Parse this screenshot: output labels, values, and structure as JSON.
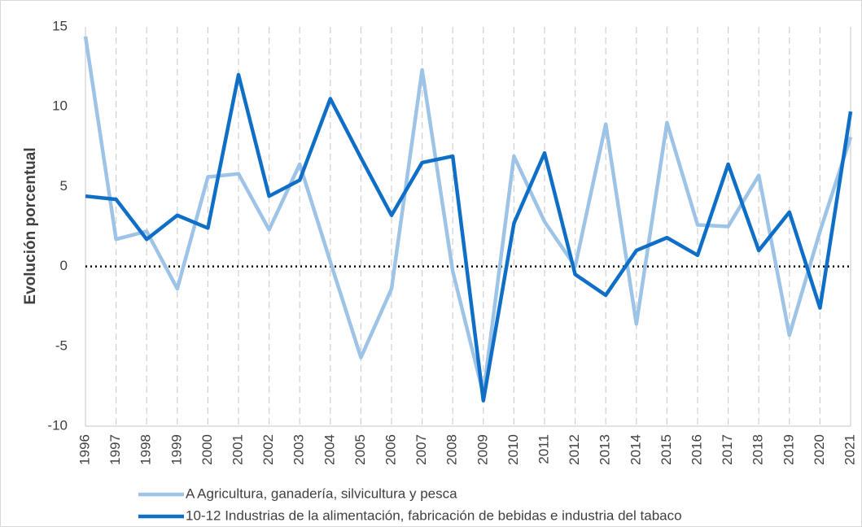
{
  "chart_data": {
    "type": "line",
    "y_label": "Evolución porcentual",
    "categories": [
      "1996",
      "1997",
      "1998",
      "1999",
      "2000",
      "2001",
      "2002",
      "2003",
      "2004",
      "2005",
      "2006",
      "2007",
      "2008",
      "2009",
      "2010",
      "2011",
      "2012",
      "2013",
      "2014",
      "2015",
      "2016",
      "2017",
      "2018",
      "2019",
      "2020",
      "2021"
    ],
    "series": [
      {
        "name": "A Agricultura, ganadería, silvicultura y pesca",
        "color": "#9dc3e6",
        "values": [
          14.4,
          1.7,
          2.2,
          -1.4,
          5.6,
          5.8,
          2.3,
          6.4,
          0.3,
          -5.7,
          -1.4,
          12.3,
          -0.3,
          -8.0,
          6.9,
          2.8,
          0.0,
          8.9,
          -3.6,
          9.0,
          2.6,
          2.5,
          5.7,
          -4.3,
          2.2,
          8.1
        ]
      },
      {
        "name": "10-12 Industrias de la alimentación, fabricación de bebidas e industria del tabaco",
        "color": "#0f6fc6",
        "values": [
          4.4,
          4.2,
          1.7,
          3.2,
          2.4,
          12.0,
          4.4,
          5.4,
          10.5,
          6.8,
          3.2,
          6.5,
          6.9,
          -8.4,
          2.7,
          7.1,
          -0.5,
          -1.8,
          1.0,
          1.8,
          0.7,
          6.4,
          1.0,
          3.4,
          -2.6,
          9.7
        ]
      }
    ],
    "ylim": [
      -10,
      15
    ],
    "yticks": [
      -10,
      -5,
      0,
      5,
      10,
      15
    ],
    "grid": true
  }
}
